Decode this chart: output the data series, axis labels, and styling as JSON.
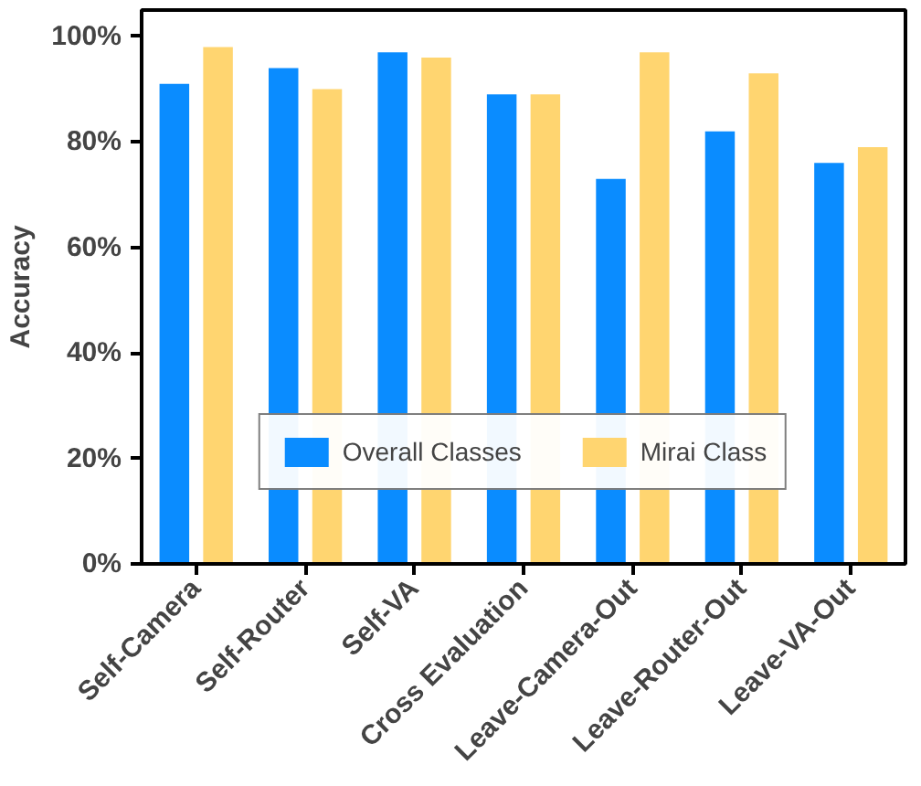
{
  "chart_data": {
    "type": "bar",
    "ylabel": "Accuracy",
    "categories": [
      "Self-Camera",
      "Self-Router",
      "Self-VA",
      "Cross Evaluation",
      "Leave-Camera-Out",
      "Leave-Router-Out",
      "Leave-VA-Out"
    ],
    "series": [
      {
        "name": "Overall Classes",
        "color": "#0a8cff",
        "values": [
          91,
          94,
          97,
          89,
          73,
          82,
          76
        ]
      },
      {
        "name": "Mirai Class",
        "color": "#ffd570",
        "values": [
          98,
          90,
          96,
          89,
          97,
          93,
          79
        ]
      }
    ],
    "ylim": [
      0,
      105
    ],
    "yticks": [
      {
        "value": 0,
        "label": "0%"
      },
      {
        "value": 20,
        "label": "20%"
      },
      {
        "value": 40,
        "label": "40%"
      },
      {
        "value": 60,
        "label": "60%"
      },
      {
        "value": 80,
        "label": "80%"
      },
      {
        "value": 100,
        "label": "100%"
      }
    ],
    "grid": false,
    "legend": "bottom"
  }
}
